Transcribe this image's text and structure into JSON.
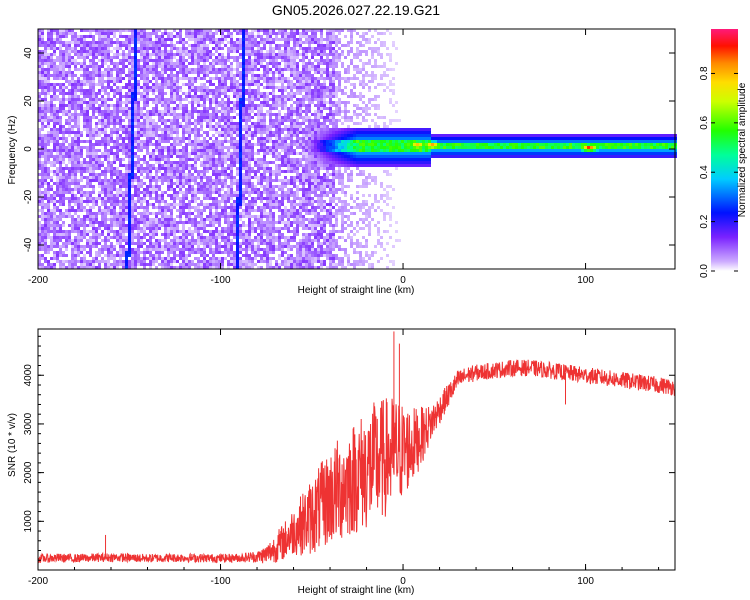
{
  "title": "GN05.2026.027.22.19.G21",
  "colors": {
    "snr_line": "#ee3333",
    "axis": "#000000",
    "background": "#ffffff"
  },
  "chart_data": [
    {
      "type": "heatmap",
      "name": "spectrogram",
      "xlabel": "Height of straight line (km)",
      "ylabel": "Frequency (Hz)",
      "xlim": [
        -200,
        149
      ],
      "ylim": [
        -50,
        50
      ],
      "xticks": [
        -200,
        -100,
        0,
        100
      ],
      "xtick_labels": [
        "-200",
        "-100",
        "0",
        "100"
      ],
      "yticks": [
        -40,
        -20,
        0,
        20,
        40
      ],
      "ytick_labels": [
        "-40",
        "-20",
        "0",
        "20",
        "40"
      ],
      "colorbar": {
        "label": "Normalized spectral amplitude",
        "range": [
          0,
          0.98
        ],
        "ticks": [
          0.0,
          0.2,
          0.4,
          0.6,
          0.8
        ],
        "tick_labels": [
          "0.0",
          "0.2",
          "0.4",
          "0.6",
          "0.8"
        ],
        "colormap": "rainbow"
      },
      "features": {
        "noise_region_km": [
          -200,
          -37
        ],
        "noise_amplitude": 0.08,
        "transition_km": [
          -55,
          10
        ],
        "signal_band_center_hz": 1,
        "signal_band_halfwidth_hz": 3,
        "tracks": [
          {
            "x_start_km": -151,
            "x_end_km": -146,
            "amplitude": 0.12
          },
          {
            "x_start_km": -91,
            "x_end_km": -87,
            "amplitude": 0.1
          }
        ],
        "hot_spots": [
          {
            "x_km": 8,
            "freq_hz": 1.5,
            "amplitude": 0.92
          },
          {
            "x_km": 16,
            "freq_hz": 1.5,
            "amplitude": 0.95
          },
          {
            "x_km": 102,
            "freq_hz": 0.5,
            "amplitude": 0.97
          }
        ]
      }
    },
    {
      "type": "line",
      "name": "snr",
      "xlabel": "Height of straight line (km)",
      "ylabel": "SNR (10 * v/v)",
      "xlim": [
        -200,
        149
      ],
      "ylim": [
        0,
        4950
      ],
      "xticks": [
        -200,
        -100,
        0,
        100
      ],
      "xtick_labels": [
        "-200",
        "-100",
        "0",
        "100"
      ],
      "yticks": [
        1000,
        2000,
        3000,
        4000
      ],
      "ytick_labels": [
        "1000",
        "2000",
        "3000",
        "4000"
      ],
      "series": [
        {
          "name": "SNR",
          "x": [
            -200,
            -190,
            -180,
            -170,
            -160,
            -150,
            -140,
            -130,
            -120,
            -110,
            -100,
            -90,
            -80,
            -75,
            -70,
            -65,
            -60,
            -55,
            -50,
            -45,
            -40,
            -35,
            -30,
            -25,
            -20,
            -15,
            -10,
            -5,
            0,
            5,
            10,
            15,
            20,
            25,
            30,
            35,
            40,
            50,
            60,
            70,
            80,
            90,
            100,
            110,
            120,
            130,
            140,
            149
          ],
          "values": [
            230,
            250,
            240,
            250,
            260,
            250,
            240,
            250,
            250,
            245,
            240,
            250,
            270,
            320,
            450,
            600,
            800,
            950,
            1100,
            1300,
            1500,
            1650,
            1800,
            1950,
            2050,
            2200,
            2300,
            2400,
            2450,
            2550,
            2750,
            3000,
            3300,
            3600,
            3900,
            4000,
            4050,
            4100,
            4150,
            4150,
            4100,
            4050,
            4000,
            3950,
            3900,
            3850,
            3800,
            3750
          ],
          "noise_envelope": [
            90,
            90,
            90,
            90,
            90,
            90,
            90,
            90,
            90,
            90,
            90,
            90,
            120,
            200,
            300,
            400,
            500,
            650,
            800,
            900,
            1000,
            1100,
            1150,
            1200,
            1250,
            1300,
            1250,
            1200,
            1000,
            800,
            600,
            400,
            300,
            250,
            200,
            180,
            170,
            170,
            170,
            170,
            170,
            170,
            170,
            170,
            170,
            170,
            170,
            170
          ],
          "spikes": [
            {
              "x": -163,
              "value": 720
            },
            {
              "x": -5,
              "value": 4900
            },
            {
              "x": -2,
              "value": 4650
            },
            {
              "x": 89,
              "value": 3400
            }
          ]
        }
      ]
    }
  ]
}
